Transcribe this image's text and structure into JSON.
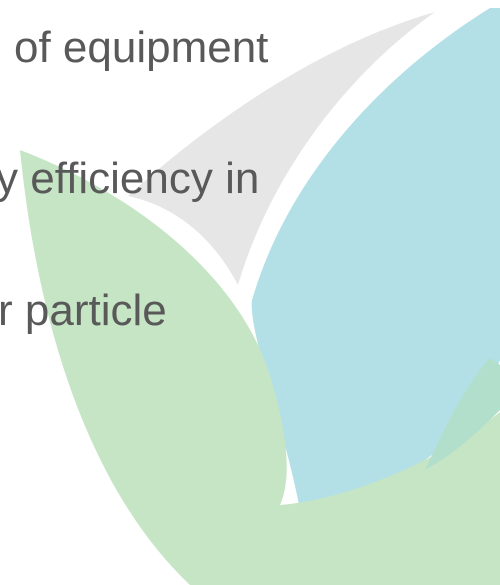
{
  "text_lines": [
    "of equipment",
    "y efficiency in",
    "r particle"
  ]
}
